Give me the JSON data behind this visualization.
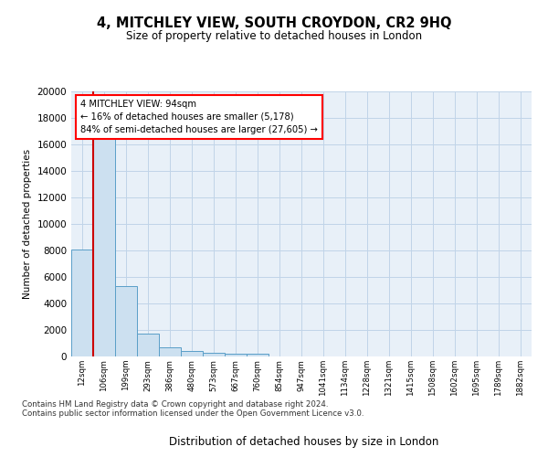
{
  "title_line1": "4, MITCHLEY VIEW, SOUTH CROYDON, CR2 9HQ",
  "title_line2": "Size of property relative to detached houses in London",
  "xlabel": "Distribution of detached houses by size in London",
  "ylabel": "Number of detached properties",
  "categories": [
    "12sqm",
    "106sqm",
    "199sqm",
    "293sqm",
    "386sqm",
    "480sqm",
    "573sqm",
    "667sqm",
    "760sqm",
    "854sqm",
    "947sqm",
    "1041sqm",
    "1134sqm",
    "1228sqm",
    "1321sqm",
    "1415sqm",
    "1508sqm",
    "1602sqm",
    "1695sqm",
    "1789sqm",
    "1882sqm"
  ],
  "values": [
    8100,
    16700,
    5300,
    1750,
    700,
    380,
    280,
    220,
    180,
    0,
    0,
    0,
    0,
    0,
    0,
    0,
    0,
    0,
    0,
    0,
    0
  ],
  "bar_color": "#cce0f0",
  "bar_edge_color": "#5a9ec8",
  "grid_color": "#c0d4e8",
  "background_color": "#e8f0f8",
  "annotation_box_text": "4 MITCHLEY VIEW: 94sqm\n← 16% of detached houses are smaller (5,178)\n84% of semi-detached houses are larger (27,605) →",
  "vline_color": "#cc0000",
  "vline_x": 0.5,
  "ylim": [
    0,
    20000
  ],
  "yticks": [
    0,
    2000,
    4000,
    6000,
    8000,
    10000,
    12000,
    14000,
    16000,
    18000,
    20000
  ],
  "footer_line1": "Contains HM Land Registry data © Crown copyright and database right 2024.",
  "footer_line2": "Contains public sector information licensed under the Open Government Licence v3.0."
}
